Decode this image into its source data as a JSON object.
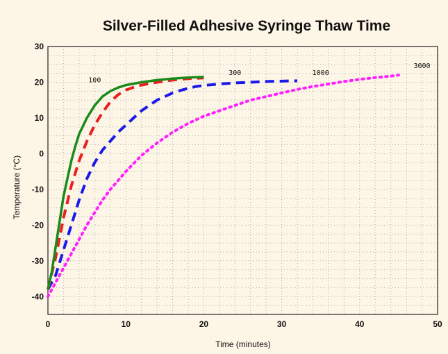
{
  "chart_data": {
    "type": "line",
    "title": "Silver-Filled Adhesive Syringe Thaw Time",
    "xlabel": "Time (minutes)",
    "ylabel": "Temperature (°C)",
    "xlim": [
      0,
      50
    ],
    "ylim": [
      -45,
      30
    ],
    "x_ticks": [
      0,
      10,
      20,
      30,
      40,
      50
    ],
    "y_ticks": [
      30,
      20,
      10,
      0,
      -10,
      -20,
      -30,
      -40
    ],
    "grid": true,
    "legend": "none",
    "series": [
      {
        "name": "100",
        "color": "#1a8a1a",
        "style": "solid",
        "points": [
          [
            0,
            -38
          ],
          [
            0.5,
            -33
          ],
          [
            1,
            -26
          ],
          [
            1.5,
            -19
          ],
          [
            2,
            -12
          ],
          [
            2.5,
            -7
          ],
          [
            3,
            -2
          ],
          [
            3.5,
            2
          ],
          [
            4,
            5.5
          ],
          [
            5,
            10
          ],
          [
            6,
            13.5
          ],
          [
            7,
            16
          ],
          [
            8,
            17.5
          ],
          [
            9,
            18.5
          ],
          [
            10,
            19.2
          ],
          [
            12,
            20
          ],
          [
            14,
            20.6
          ],
          [
            16,
            21
          ],
          [
            18,
            21.3
          ],
          [
            20,
            21.5
          ]
        ]
      },
      {
        "name": "300",
        "color": "#e82020",
        "style": "dashed",
        "points": [
          [
            0,
            -38
          ],
          [
            1,
            -29
          ],
          [
            2,
            -18
          ],
          [
            3,
            -9
          ],
          [
            4,
            -2
          ],
          [
            5,
            3.5
          ],
          [
            6,
            8
          ],
          [
            7,
            11.5
          ],
          [
            8,
            14.5
          ],
          [
            9,
            16.5
          ],
          [
            10,
            17.8
          ],
          [
            11,
            18.6
          ],
          [
            12,
            19.2
          ],
          [
            14,
            20
          ],
          [
            16,
            20.6
          ],
          [
            18,
            21
          ],
          [
            20,
            21.2
          ]
        ]
      },
      {
        "name": "1000",
        "color": "#1a1ae8",
        "style": "dashed",
        "points": [
          [
            0,
            -38
          ],
          [
            1,
            -34
          ],
          [
            2,
            -27
          ],
          [
            3,
            -20
          ],
          [
            4,
            -13
          ],
          [
            5,
            -7
          ],
          [
            6,
            -2.5
          ],
          [
            7,
            1
          ],
          [
            8,
            3.5
          ],
          [
            9,
            6
          ],
          [
            10,
            8
          ],
          [
            11,
            10
          ],
          [
            12,
            12
          ],
          [
            13,
            13.5
          ],
          [
            14,
            15
          ],
          [
            15,
            16
          ],
          [
            16,
            17
          ],
          [
            17,
            17.7
          ],
          [
            18,
            18.3
          ],
          [
            19,
            18.8
          ],
          [
            20,
            19.1
          ],
          [
            22,
            19.5
          ],
          [
            24,
            19.8
          ],
          [
            26,
            20
          ],
          [
            28,
            20.2
          ],
          [
            30,
            20.3
          ],
          [
            32,
            20.4
          ]
        ]
      },
      {
        "name": "3000",
        "color": "#ff20ff",
        "style": "dotted",
        "points": [
          [
            0,
            -40
          ],
          [
            1,
            -36
          ],
          [
            2,
            -32
          ],
          [
            3,
            -28
          ],
          [
            4,
            -24
          ],
          [
            5,
            -20
          ],
          [
            6,
            -16.5
          ],
          [
            7,
            -13
          ],
          [
            8,
            -10
          ],
          [
            9,
            -7.5
          ],
          [
            10,
            -5
          ],
          [
            12,
            -0.5
          ],
          [
            14,
            3
          ],
          [
            16,
            6
          ],
          [
            18,
            8.5
          ],
          [
            20,
            10.5
          ],
          [
            22,
            12
          ],
          [
            24,
            13.5
          ],
          [
            26,
            15
          ],
          [
            28,
            16
          ],
          [
            30,
            17
          ],
          [
            32,
            18
          ],
          [
            34,
            18.8
          ],
          [
            36,
            19.5
          ],
          [
            38,
            20.2
          ],
          [
            40,
            20.8
          ],
          [
            42,
            21.3
          ],
          [
            44,
            21.7
          ],
          [
            45,
            22
          ]
        ]
      }
    ],
    "annotations": [
      {
        "text": "100",
        "x": 6,
        "y": 20
      },
      {
        "text": "300",
        "x": 24,
        "y": 22
      },
      {
        "text": "1000",
        "x": 35,
        "y": 22
      },
      {
        "text": "3000",
        "x": 48,
        "y": 24
      }
    ]
  }
}
